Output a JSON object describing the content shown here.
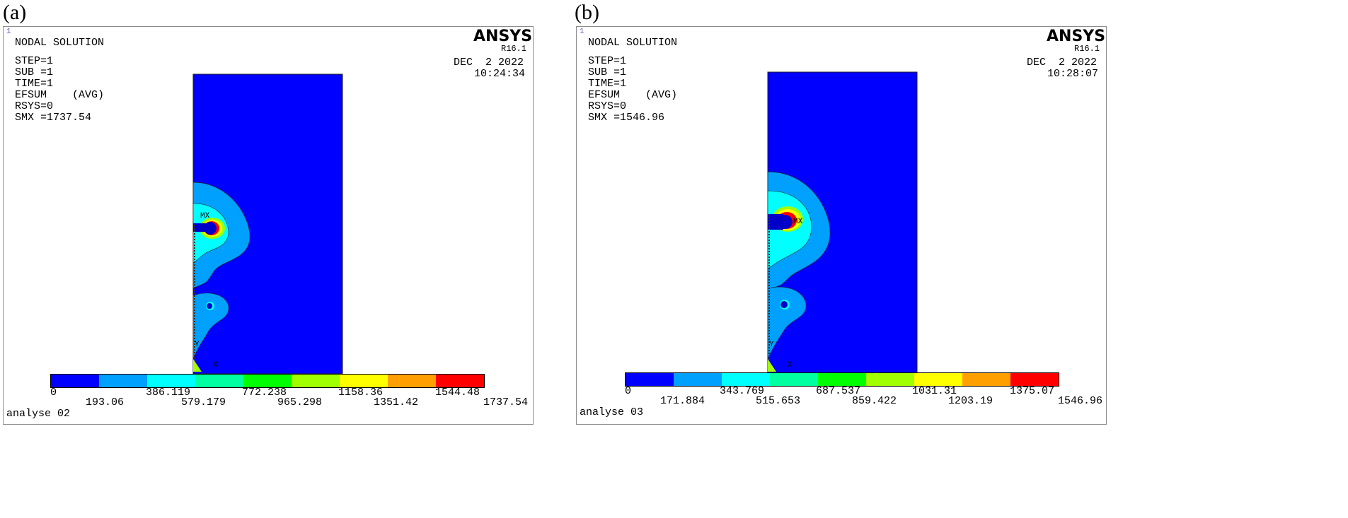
{
  "panels": [
    {
      "letter": "(a)",
      "corner": "1",
      "title": "NODAL SOLUTION",
      "step": "STEP=1",
      "sub": "SUB =1",
      "time": "TIME=1",
      "efsum": "EFSUM    (AVG)",
      "rsys": "RSYS=0",
      "smx": "SMX =1737.54",
      "brand": "ANSYS",
      "version": "R16.1",
      "date": "DEC  2 2022",
      "clock": "10:24:34",
      "mx_label": "MX",
      "footer": "analyse 02",
      "legend_top": [
        "0",
        "386.119",
        "772.238",
        "1158.36",
        "1544.48"
      ],
      "legend_bottom": [
        "193.06",
        "579.179",
        "965.298",
        "1351.42",
        "1737.54"
      ]
    },
    {
      "letter": "(b)",
      "corner": "1",
      "title": "NODAL SOLUTION",
      "step": "STEP=1",
      "sub": "SUB =1",
      "time": "TIME=1",
      "efsum": "EFSUM    (AVG)",
      "rsys": "RSYS=0",
      "smx": "SMX =1546.96",
      "brand": "ANSYS",
      "version": "R16.1",
      "date": "DEC  2 2022",
      "clock": "10:28:07",
      "mx_label": "MX",
      "footer": "analyse 03",
      "legend_top": [
        "0",
        "343.769",
        "687.537",
        "1031.31",
        "1375.07"
      ],
      "legend_bottom": [
        "171.884",
        "515.653",
        "859.422",
        "1203.19",
        "1546.96"
      ]
    }
  ],
  "axis_labels": {
    "y": "Y",
    "x": "X"
  },
  "contour_colors": [
    "#0000ff",
    "#00a0ff",
    "#00ffff",
    "#00ffa0",
    "#00ff00",
    "#a0ff00",
    "#ffff00",
    "#ffa000",
    "#ff0000"
  ]
}
